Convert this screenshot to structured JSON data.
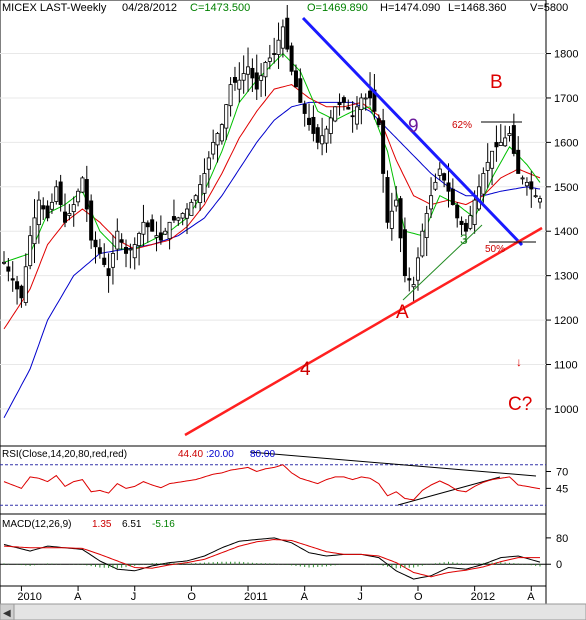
{
  "header": {
    "symbol": "MICEX LAST-Weekly",
    "date": "04/28/2012",
    "close": "C=1473.500",
    "open": "O=1469.890",
    "high": "H=1474.090",
    "low": "L=1468.360",
    "volume": "V=5800"
  },
  "colors": {
    "close_text": "#008000",
    "open_text": "#008000",
    "price_line": "#000000",
    "ma_fast": "#00c000",
    "ma_mid": "#e00000",
    "ma_slow": "#0000cc",
    "downtrend": "#1a1aff",
    "uptrend": "#ff2020",
    "annotation": "#dd0000",
    "wave_label": "#6a1a9a"
  },
  "chart_data": [
    {
      "type": "candlestick",
      "name": "price",
      "y_ticks": [
        1800,
        1700,
        1600,
        1500,
        1400,
        1300,
        1200,
        1100,
        1000
      ],
      "ylim": [
        930,
        1880
      ],
      "x_labels": [
        "2010",
        "A",
        "J",
        "O",
        "2011",
        "A",
        "J",
        "O",
        "2012",
        "A"
      ],
      "weeks": 124,
      "close_path": [
        [
          0,
          1330
        ],
        [
          4,
          1250
        ],
        [
          6,
          1390
        ],
        [
          8,
          1470
        ],
        [
          10,
          1430
        ],
        [
          12,
          1500
        ],
        [
          14,
          1420
        ],
        [
          16,
          1460
        ],
        [
          18,
          1520
        ],
        [
          20,
          1380
        ],
        [
          22,
          1350
        ],
        [
          24,
          1300
        ],
        [
          26,
          1400
        ],
        [
          28,
          1350
        ],
        [
          30,
          1370
        ],
        [
          32,
          1420
        ],
        [
          34,
          1400
        ],
        [
          36,
          1380
        ],
        [
          38,
          1420
        ],
        [
          40,
          1430
        ],
        [
          42,
          1450
        ],
        [
          44,
          1480
        ],
        [
          46,
          1530
        ],
        [
          48,
          1600
        ],
        [
          50,
          1640
        ],
        [
          52,
          1730
        ],
        [
          54,
          1740
        ],
        [
          56,
          1770
        ],
        [
          58,
          1720
        ],
        [
          60,
          1780
        ],
        [
          62,
          1800
        ],
        [
          64,
          1860
        ],
        [
          66,
          1760
        ],
        [
          68,
          1690
        ],
        [
          70,
          1640
        ],
        [
          72,
          1600
        ],
        [
          74,
          1630
        ],
        [
          76,
          1680
        ],
        [
          78,
          1690
        ],
        [
          80,
          1660
        ],
        [
          82,
          1700
        ],
        [
          84,
          1700
        ],
        [
          86,
          1640
        ],
        [
          88,
          1420
        ],
        [
          90,
          1470
        ],
        [
          92,
          1300
        ],
        [
          94,
          1280
        ],
        [
          96,
          1400
        ],
        [
          98,
          1480
        ],
        [
          100,
          1540
        ],
        [
          102,
          1490
        ],
        [
          104,
          1430
        ],
        [
          106,
          1400
        ],
        [
          108,
          1470
        ],
        [
          110,
          1530
        ],
        [
          112,
          1580
        ],
        [
          114,
          1600
        ],
        [
          116,
          1620
        ],
        [
          118,
          1530
        ],
        [
          120,
          1510
        ],
        [
          122,
          1480
        ],
        [
          123,
          1473.5
        ]
      ],
      "ma_fast_path": [
        [
          0,
          1330
        ],
        [
          6,
          1350
        ],
        [
          10,
          1440
        ],
        [
          14,
          1460
        ],
        [
          18,
          1490
        ],
        [
          22,
          1400
        ],
        [
          26,
          1360
        ],
        [
          30,
          1360
        ],
        [
          34,
          1380
        ],
        [
          38,
          1400
        ],
        [
          42,
          1430
        ],
        [
          46,
          1490
        ],
        [
          50,
          1580
        ],
        [
          54,
          1690
        ],
        [
          58,
          1740
        ],
        [
          62,
          1780
        ],
        [
          64,
          1800
        ],
        [
          68,
          1760
        ],
        [
          72,
          1670
        ],
        [
          76,
          1650
        ],
        [
          80,
          1670
        ],
        [
          84,
          1680
        ],
        [
          88,
          1580
        ],
        [
          92,
          1400
        ],
        [
          96,
          1390
        ],
        [
          100,
          1480
        ],
        [
          104,
          1460
        ],
        [
          108,
          1430
        ],
        [
          112,
          1520
        ],
        [
          116,
          1590
        ],
        [
          120,
          1550
        ],
        [
          123,
          1510
        ]
      ],
      "ma_mid_path": [
        [
          0,
          1180
        ],
        [
          6,
          1270
        ],
        [
          10,
          1370
        ],
        [
          14,
          1420
        ],
        [
          18,
          1450
        ],
        [
          22,
          1420
        ],
        [
          26,
          1380
        ],
        [
          30,
          1360
        ],
        [
          34,
          1370
        ],
        [
          38,
          1380
        ],
        [
          42,
          1410
        ],
        [
          46,
          1460
        ],
        [
          50,
          1530
        ],
        [
          54,
          1610
        ],
        [
          58,
          1670
        ],
        [
          62,
          1720
        ],
        [
          66,
          1730
        ],
        [
          70,
          1700
        ],
        [
          74,
          1680
        ],
        [
          78,
          1680
        ],
        [
          82,
          1690
        ],
        [
          86,
          1660
        ],
        [
          90,
          1560
        ],
        [
          94,
          1480
        ],
        [
          98,
          1460
        ],
        [
          102,
          1470
        ],
        [
          106,
          1460
        ],
        [
          110,
          1480
        ],
        [
          114,
          1520
        ],
        [
          118,
          1540
        ],
        [
          123,
          1520
        ]
      ],
      "ma_slow_path": [
        [
          0,
          980
        ],
        [
          6,
          1090
        ],
        [
          10,
          1200
        ],
        [
          16,
          1300
        ],
        [
          22,
          1350
        ],
        [
          28,
          1360
        ],
        [
          34,
          1370
        ],
        [
          40,
          1390
        ],
        [
          46,
          1430
        ],
        [
          50,
          1480
        ],
        [
          54,
          1540
        ],
        [
          58,
          1600
        ],
        [
          62,
          1650
        ],
        [
          66,
          1680
        ],
        [
          70,
          1690
        ],
        [
          74,
          1690
        ],
        [
          80,
          1690
        ],
        [
          84,
          1670
        ],
        [
          90,
          1610
        ],
        [
          94,
          1570
        ],
        [
          98,
          1530
        ],
        [
          102,
          1500
        ],
        [
          106,
          1480
        ],
        [
          110,
          1480
        ],
        [
          114,
          1490
        ],
        [
          120,
          1500
        ],
        [
          123,
          1495
        ]
      ]
    },
    {
      "type": "line",
      "name": "RSI",
      "title": "RSI(Close,14,20,80,red,red)",
      "values_text": [
        "44.40",
        ":20.00",
        "80.00"
      ],
      "y_ticks": [
        70,
        45
      ],
      "ylim": [
        10,
        90
      ],
      "series": [
        {
          "values": [
            [
              0,
              55
            ],
            [
              4,
              45
            ],
            [
              6,
              62
            ],
            [
              8,
              60
            ],
            [
              10,
              55
            ],
            [
              12,
              64
            ],
            [
              14,
              48
            ],
            [
              16,
              55
            ],
            [
              18,
              58
            ],
            [
              20,
              40
            ],
            [
              22,
              42
            ],
            [
              24,
              38
            ],
            [
              26,
              52
            ],
            [
              28,
              45
            ],
            [
              30,
              48
            ],
            [
              32,
              55
            ],
            [
              34,
              50
            ],
            [
              36,
              46
            ],
            [
              38,
              52
            ],
            [
              40,
              54
            ],
            [
              42,
              56
            ],
            [
              44,
              58
            ],
            [
              46,
              62
            ],
            [
              48,
              66
            ],
            [
              50,
              68
            ],
            [
              52,
              72
            ],
            [
              54,
              74
            ],
            [
              56,
              76
            ],
            [
              58,
              70
            ],
            [
              60,
              74
            ],
            [
              62,
              76
            ],
            [
              64,
              80
            ],
            [
              66,
              68
            ],
            [
              68,
              60
            ],
            [
              70,
              56
            ],
            [
              72,
              52
            ],
            [
              74,
              58
            ],
            [
              76,
              62
            ],
            [
              78,
              62
            ],
            [
              80,
              58
            ],
            [
              82,
              62
            ],
            [
              84,
              60
            ],
            [
              86,
              52
            ],
            [
              88,
              34
            ],
            [
              90,
              40
            ],
            [
              92,
              30
            ],
            [
              94,
              28
            ],
            [
              96,
              42
            ],
            [
              98,
              50
            ],
            [
              100,
              56
            ],
            [
              102,
              50
            ],
            [
              104,
              42
            ],
            [
              106,
              40
            ],
            [
              108,
              48
            ],
            [
              110,
              54
            ],
            [
              112,
              58
            ],
            [
              114,
              60
            ],
            [
              116,
              62
            ],
            [
              118,
              50
            ],
            [
              120,
              48
            ],
            [
              123,
              44.4
            ]
          ]
        }
      ]
    },
    {
      "type": "line",
      "name": "MACD",
      "title": "MACD(12,26,9)",
      "values_text": [
        "1.35",
        "6.51",
        "-5.16"
      ],
      "y_ticks": [
        80,
        0
      ],
      "ylim": [
        -60,
        110
      ],
      "series": [
        {
          "name": "macd",
          "values": [
            [
              0,
              60
            ],
            [
              6,
              40
            ],
            [
              10,
              55
            ],
            [
              14,
              50
            ],
            [
              18,
              45
            ],
            [
              22,
              10
            ],
            [
              26,
              -15
            ],
            [
              30,
              -20
            ],
            [
              34,
              -5
            ],
            [
              38,
              5
            ],
            [
              42,
              10
            ],
            [
              46,
              25
            ],
            [
              50,
              50
            ],
            [
              54,
              70
            ],
            [
              58,
              75
            ],
            [
              62,
              80
            ],
            [
              66,
              65
            ],
            [
              70,
              35
            ],
            [
              74,
              25
            ],
            [
              78,
              30
            ],
            [
              82,
              30
            ],
            [
              86,
              20
            ],
            [
              90,
              -20
            ],
            [
              94,
              -45
            ],
            [
              98,
              -35
            ],
            [
              102,
              -10
            ],
            [
              106,
              -15
            ],
            [
              110,
              0
            ],
            [
              114,
              20
            ],
            [
              118,
              25
            ],
            [
              123,
              6.51
            ]
          ]
        },
        {
          "name": "signal",
          "values": [
            [
              0,
              55
            ],
            [
              6,
              50
            ],
            [
              10,
              50
            ],
            [
              14,
              50
            ],
            [
              18,
              48
            ],
            [
              22,
              30
            ],
            [
              26,
              10
            ],
            [
              30,
              -10
            ],
            [
              34,
              -12
            ],
            [
              38,
              -2
            ],
            [
              42,
              5
            ],
            [
              46,
              15
            ],
            [
              50,
              35
            ],
            [
              54,
              55
            ],
            [
              58,
              68
            ],
            [
              62,
              75
            ],
            [
              66,
              72
            ],
            [
              70,
              55
            ],
            [
              74,
              38
            ],
            [
              78,
              30
            ],
            [
              82,
              30
            ],
            [
              86,
              25
            ],
            [
              90,
              5
            ],
            [
              94,
              -25
            ],
            [
              98,
              -38
            ],
            [
              102,
              -25
            ],
            [
              106,
              -18
            ],
            [
              110,
              -8
            ],
            [
              114,
              8
            ],
            [
              118,
              20
            ],
            [
              123,
              20
            ]
          ]
        }
      ]
    }
  ],
  "annotations": {
    "wave_9": "9",
    "wave_4": "4",
    "wave_3": "3",
    "label_A": "A",
    "label_B": "B",
    "label_C": "C?",
    "fib_62": "62%",
    "fib_50": "50%",
    "arrow_down": "↓"
  }
}
